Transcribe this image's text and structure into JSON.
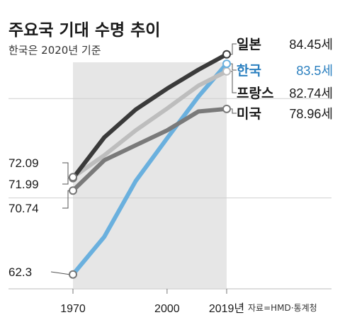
{
  "title": "주요국 기대 수명 추이",
  "subtitle": "한국은 2020년 기준",
  "source": "자료=HMD·통계청",
  "colors": {
    "japan": "#3a3a3a",
    "korea": "#6ab0de",
    "france": "#bdbdbd",
    "usa": "#7a7a7a",
    "korea_label": "#2a7fbf",
    "shade": "#e6e6e6"
  },
  "chart_data": {
    "type": "line",
    "title": "주요국 기대 수명 추이",
    "subtitle": "한국은 2020년 기준",
    "x_ticks": [
      {
        "x": 1970,
        "label": "1970"
      },
      {
        "x": 2000,
        "label": "2000"
      },
      {
        "x": 2019,
        "label": "2019년"
      }
    ],
    "xlim": [
      1970,
      2019
    ],
    "ylim": [
      60,
      86
    ],
    "grid": "horizontal",
    "start_labels": [
      "72.09",
      "71.99",
      "70.74",
      "62.3"
    ],
    "series": [
      {
        "name": "일본",
        "key": "japan",
        "end_label": "84.45세",
        "x": [
          1970,
          1980,
          1990,
          2000,
          2010,
          2019
        ],
        "y": [
          71.99,
          76.1,
          78.9,
          81.0,
          82.9,
          84.45
        ]
      },
      {
        "name": "프랑스",
        "key": "france",
        "end_label": "82.74세",
        "x": [
          1970,
          1980,
          1990,
          2000,
          2010,
          2019
        ],
        "y": [
          72.09,
          74.3,
          76.8,
          79.0,
          81.3,
          82.74
        ]
      },
      {
        "name": "미국",
        "key": "usa",
        "end_label": "78.96세",
        "x": [
          1970,
          1980,
          1990,
          2000,
          2010,
          2019
        ],
        "y": [
          70.74,
          73.8,
          75.3,
          76.8,
          78.7,
          78.96
        ]
      },
      {
        "name": "한국",
        "key": "korea",
        "end_label": "83.5세",
        "x": [
          1970,
          1980,
          1990,
          2000,
          2010,
          2019
        ],
        "y": [
          62.3,
          66.1,
          71.7,
          76.0,
          80.2,
          83.5
        ]
      }
    ]
  }
}
